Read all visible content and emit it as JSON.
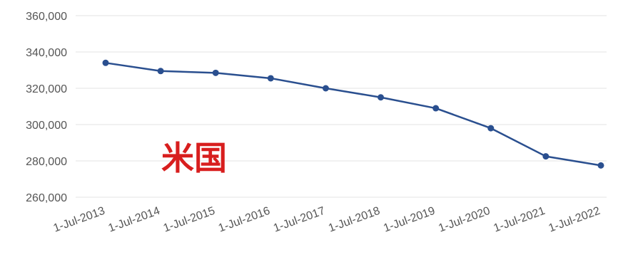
{
  "chart_data": {
    "type": "line",
    "categories": [
      "1-Jul-2013",
      "1-Jul-2014",
      "1-Jul-2015",
      "1-Jul-2016",
      "1-Jul-2017",
      "1-Jul-2018",
      "1-Jul-2019",
      "1-Jul-2020",
      "1-Jul-2021",
      "1-Jul-2022"
    ],
    "series": [
      {
        "values": [
          334000,
          329500,
          328500,
          325500,
          320000,
          315000,
          309000,
          298000,
          282500,
          277500
        ],
        "color": "#2a4f8f"
      }
    ],
    "title": "",
    "xlabel": "",
    "ylabel": "",
    "ylim": [
      260000,
      360000
    ],
    "yticks": [
      "260,000",
      "280,000",
      "300,000",
      "320,000",
      "340,000",
      "360,000"
    ],
    "ytick_values": [
      260000,
      280000,
      300000,
      320000,
      340000,
      360000
    ],
    "grid": true,
    "gridline_color": "#e3e3e3",
    "legend": "none",
    "annotation": {
      "text": "米国",
      "color": "#d81e1e"
    }
  }
}
